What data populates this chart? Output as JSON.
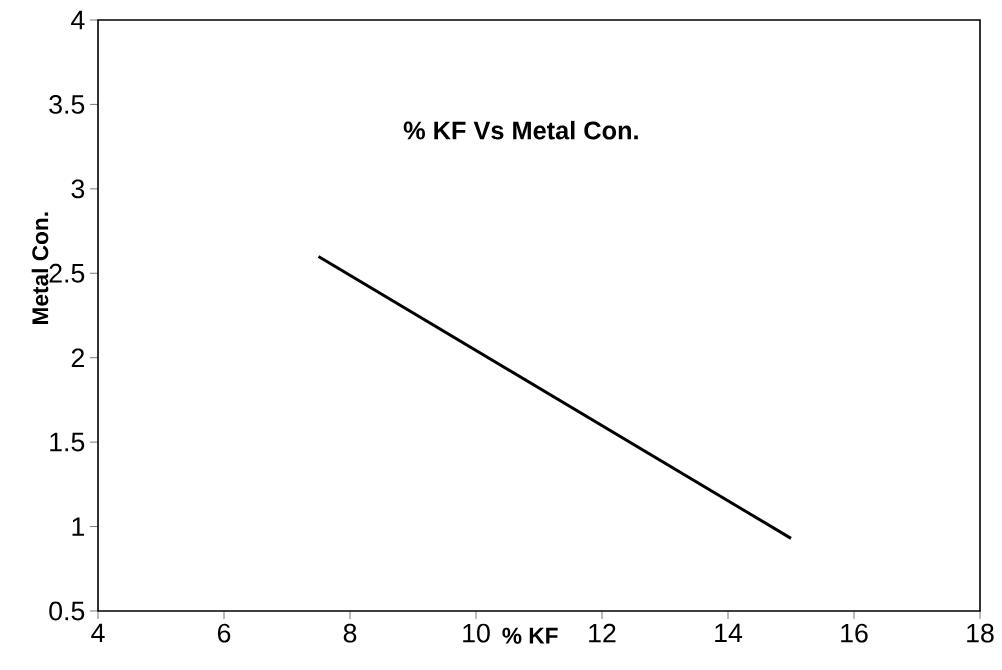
{
  "chart_data": {
    "type": "line",
    "title": "% KF Vs Metal Con.",
    "xlabel": "% KF",
    "ylabel": "Metal Con.",
    "x": [
      7.5,
      15
    ],
    "series": [
      {
        "color": "#000000",
        "values": [
          2.6,
          0.93
        ]
      }
    ],
    "xlim": [
      4,
      18
    ],
    "xticks": [
      4,
      6,
      8,
      10,
      12,
      14,
      16,
      18
    ],
    "ylim": [
      0.5,
      4
    ],
    "yticks": [
      0.5,
      1,
      1.5,
      2,
      2.5,
      3,
      3.5,
      4
    ],
    "grid": false,
    "marker": "none",
    "line_style": "solid"
  }
}
